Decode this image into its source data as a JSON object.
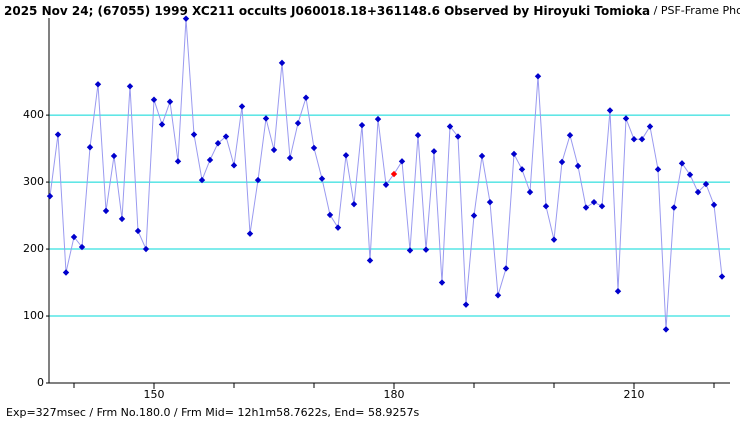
{
  "chart_data": {
    "type": "line",
    "title": "2025 Nov 24; (67055) 1999 XC211 occults J060018.18+361148.6 Observed by Hiroyuki Tomioka",
    "subtitle": "/ PSF-Frame Photometry /",
    "footer": "Exp=327msec / Frm No.180.0 / Frm Mid= 12h1m58.7622s, End= 58.9257s",
    "x": [
      137,
      138,
      139,
      140,
      141,
      142,
      143,
      144,
      145,
      146,
      147,
      148,
      149,
      150,
      151,
      152,
      153,
      154,
      155,
      156,
      157,
      158,
      159,
      160,
      161,
      162,
      163,
      164,
      165,
      166,
      167,
      168,
      169,
      170,
      171,
      172,
      173,
      174,
      175,
      176,
      177,
      178,
      179,
      180,
      181,
      182,
      183,
      184,
      185,
      186,
      187,
      188,
      189,
      190,
      191,
      192,
      193,
      194,
      195,
      196,
      197,
      198,
      199,
      200,
      201,
      202,
      203,
      204,
      205,
      206,
      207,
      208,
      209,
      210,
      211,
      212,
      213,
      214,
      215,
      216,
      217,
      218,
      219,
      220,
      221
    ],
    "series": [
      {
        "color": "#0000cc",
        "line_color": "#9a9af0",
        "values": [
          279,
          371,
          165,
          218,
          203,
          352,
          446,
          257,
          339,
          245,
          443,
          227,
          200,
          423,
          386,
          420,
          331,
          544,
          371,
          303,
          333,
          358,
          368,
          325,
          413,
          223,
          303,
          395,
          348,
          478,
          336,
          388,
          426,
          351,
          305,
          251,
          232,
          340,
          267,
          385,
          183,
          394,
          296,
          312,
          331,
          198,
          370,
          199,
          346,
          150,
          383,
          368,
          117,
          250,
          339,
          270,
          131,
          171,
          342,
          319,
          285,
          458,
          264,
          214,
          330,
          370,
          324,
          262,
          270,
          264,
          407,
          137,
          395,
          364,
          364,
          383,
          319,
          80,
          262,
          328,
          311,
          285,
          297,
          266,
          159
        ]
      }
    ],
    "highlight": {
      "x": 180,
      "color": "#ff0000"
    },
    "xlim": [
      136.875,
      222
    ],
    "xticks": [
      150,
      180,
      210
    ],
    "minor_xticks": [
      140,
      160,
      170,
      190,
      200,
      220
    ],
    "ylim": [
      0,
      545
    ],
    "yticks": [
      0,
      100,
      200,
      300,
      400
    ],
    "grid": true,
    "grid_color": "#00d8d8"
  }
}
